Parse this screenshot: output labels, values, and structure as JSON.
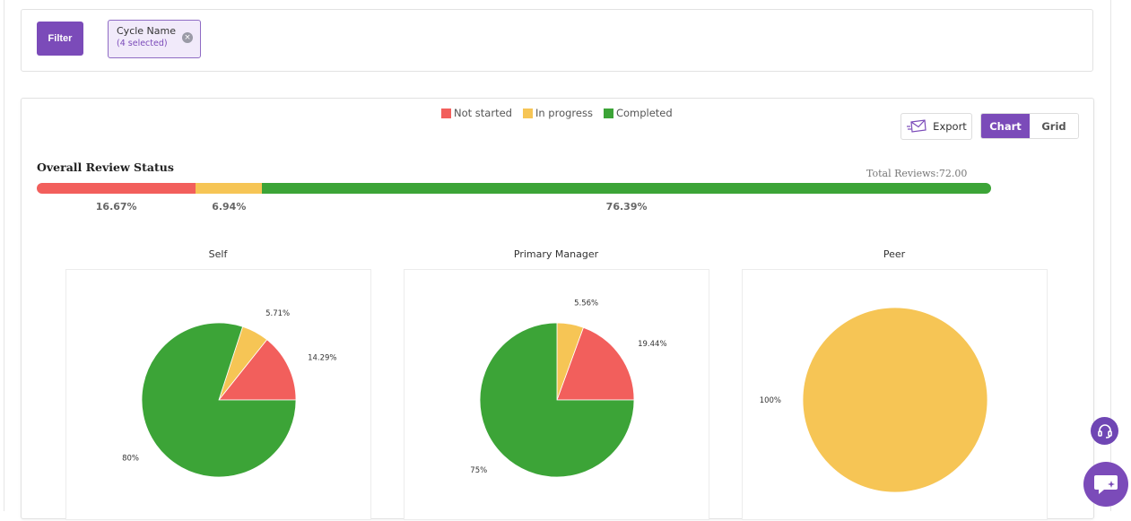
{
  "filter": {
    "button_label": "Filter",
    "chip": {
      "title": "Cycle Name",
      "subtitle": "(4 selected)"
    }
  },
  "legend": [
    {
      "label": "Not started",
      "color": "#f25f5c"
    },
    {
      "label": "In progress",
      "color": "#f6c555"
    },
    {
      "label": "Completed",
      "color": "#3ca437"
    }
  ],
  "toolbar": {
    "export_label": "Export",
    "view_options": [
      "Chart",
      "Grid"
    ],
    "active_view": "Chart"
  },
  "chart_data": [
    {
      "type": "bar",
      "title": "Overall Review Status",
      "total_label": "Total Reviews:72.00",
      "orientation": "stacked-horizontal",
      "categories": [
        "Not started",
        "In progress",
        "Completed"
      ],
      "values": [
        16.67,
        6.94,
        76.39
      ],
      "labels": [
        "16.67%",
        "6.94%",
        "76.39%"
      ],
      "colors": [
        "#f25f5c",
        "#f6c555",
        "#3ca437"
      ]
    },
    {
      "type": "pie",
      "title": "Self",
      "slices": [
        {
          "category": "Not started",
          "value": 14.29,
          "label": "14.29%",
          "color": "#f25f5c"
        },
        {
          "category": "In progress",
          "value": 5.71,
          "label": "5.71%",
          "color": "#f6c555"
        },
        {
          "category": "Completed",
          "value": 80,
          "label": "80%",
          "color": "#3ca437"
        }
      ]
    },
    {
      "type": "pie",
      "title": "Primary Manager",
      "slices": [
        {
          "category": "Not started",
          "value": 19.44,
          "label": "19.44%",
          "color": "#f25f5c"
        },
        {
          "category": "In progress",
          "value": 5.56,
          "label": "5.56%",
          "color": "#f6c555"
        },
        {
          "category": "Completed",
          "value": 75,
          "label": "75%",
          "color": "#3ca437"
        }
      ]
    },
    {
      "type": "pie",
      "title": "Peer",
      "slices": [
        {
          "category": "In progress",
          "value": 100,
          "label": "100%",
          "color": "#f6c555"
        }
      ]
    }
  ],
  "icons": {
    "chip_remove": "close-circle-icon",
    "export": "envelope-export-icon",
    "support": "headset-icon",
    "chat": "chat-sparkle-icon"
  }
}
